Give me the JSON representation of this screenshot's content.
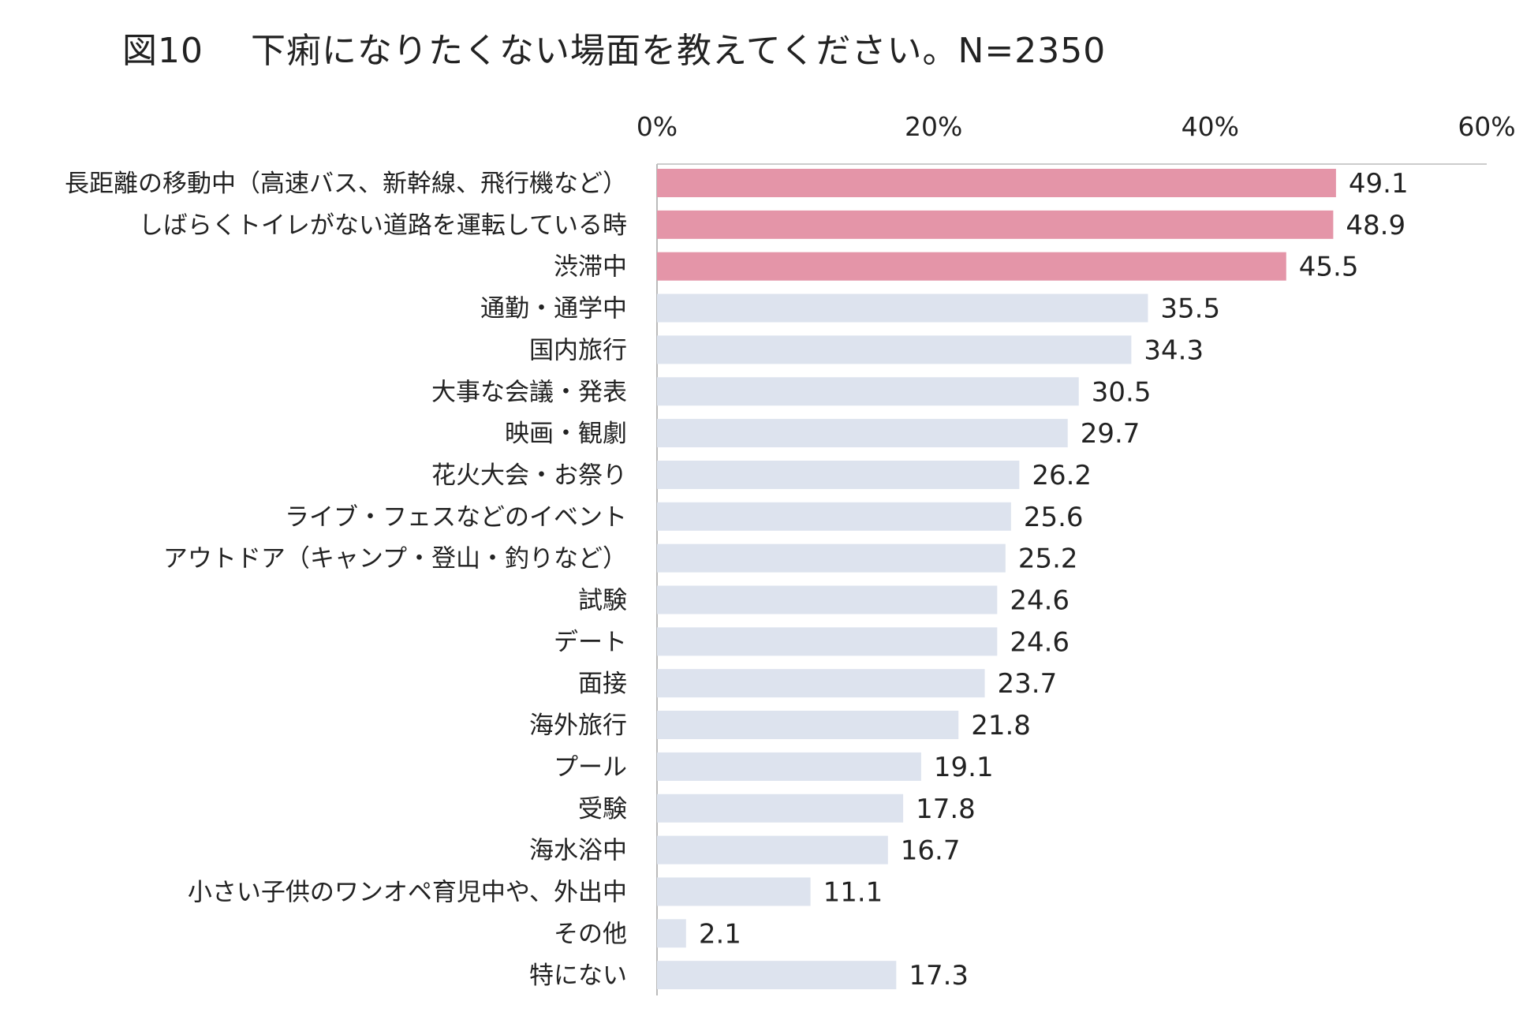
{
  "title": "図10　 下痢になりたくない場面を教えてください。N=2350",
  "colors": {
    "highlight": "#e495a8",
    "normal": "#dde3ee",
    "axis": "#bbbbbb",
    "text": "#222222"
  },
  "chart_data": {
    "type": "bar",
    "orientation": "horizontal",
    "title": "図10　 下痢になりたくない場面を教えてください。N=2350",
    "xlabel": "",
    "ylabel": "",
    "xlim": [
      0,
      60
    ],
    "x_ticks": [
      0,
      20,
      40,
      60
    ],
    "x_tick_labels": [
      "0%",
      "20%",
      "40%",
      "60%"
    ],
    "x_axis_position": "top",
    "grid": false,
    "categories": [
      "長距離の移動中（高速バス、新幹線、飛行機など）",
      "しばらくトイレがない道路を運転している時",
      "渋滞中",
      "通勤・通学中",
      "国内旅行",
      "大事な会議・発表",
      "映画・観劇",
      "花火大会・お祭り",
      "ライブ・フェスなどのイベント",
      "アウトドア（キャンプ・登山・釣りなど）",
      "試験",
      "デート",
      "面接",
      "海外旅行",
      "プール",
      "受験",
      "海水浴中",
      "小さい子供のワンオペ育児中や、外出中",
      "その他",
      "特にない"
    ],
    "values": [
      49.1,
      48.9,
      45.5,
      35.5,
      34.3,
      30.5,
      29.7,
      26.2,
      25.6,
      25.2,
      24.6,
      24.6,
      23.7,
      21.8,
      19.1,
      17.8,
      16.7,
      11.1,
      2.1,
      17.3
    ],
    "value_labels": [
      "49.1",
      "48.9",
      "45.5",
      "35.5",
      "34.3",
      "30.5",
      "29.7",
      "26.2",
      "25.6",
      "25.2",
      "24.6",
      "24.6",
      "23.7",
      "21.8",
      "19.1",
      "17.8",
      "16.7",
      "11.1",
      "2.1",
      "17.3"
    ],
    "highlight_count": 3
  }
}
